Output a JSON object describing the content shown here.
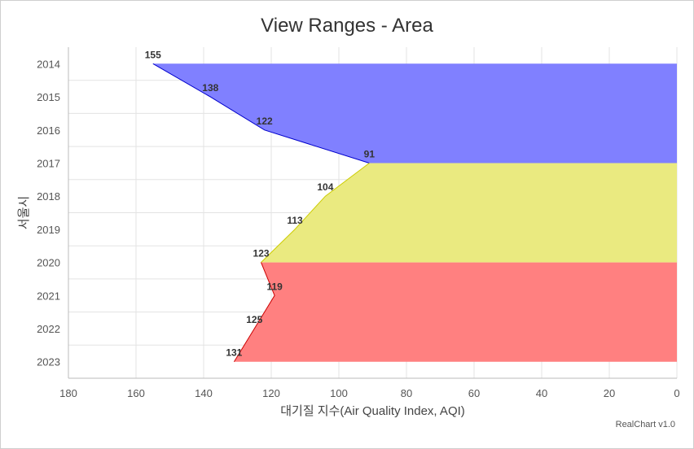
{
  "title": "View Ranges - Area",
  "credit": "RealChart v1.0",
  "chart_data": {
    "type": "area",
    "orientation": "horizontal",
    "title": "View Ranges - Area",
    "xlabel": "대기질 지수(Air Quality Index, AQI)",
    "ylabel": "서울시",
    "xlim": [
      180,
      0
    ],
    "x_reversed": true,
    "x_ticks": [
      180,
      160,
      140,
      120,
      100,
      80,
      60,
      40,
      20,
      0
    ],
    "categories": [
      "2014",
      "2015",
      "2016",
      "2017",
      "2018",
      "2019",
      "2020",
      "2021",
      "2022",
      "2023"
    ],
    "values": [
      155,
      138,
      122,
      91,
      104,
      113,
      123,
      119,
      125,
      131
    ],
    "view_ranges": [
      {
        "from": 0,
        "to": 3,
        "color": "#8080ff",
        "line": "#0000cc"
      },
      {
        "from": 3,
        "to": 6,
        "color": "#eaea80",
        "line": "#cccc00"
      },
      {
        "from": 6,
        "to": 9,
        "color": "#ff8080",
        "line": "#cc0000"
      }
    ],
    "grid": true,
    "data_labels": true
  }
}
